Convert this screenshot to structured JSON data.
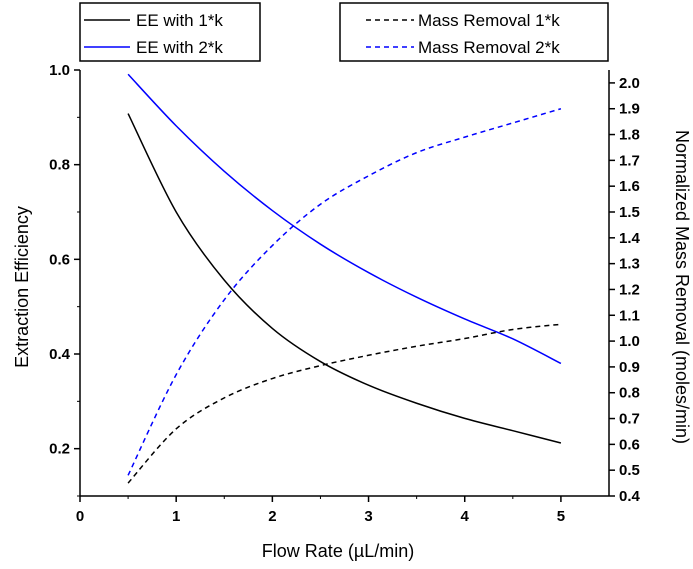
{
  "chart_data": {
    "type": "line",
    "xlabel": "Flow Rate (µL/min)",
    "ylabel_left": "Extraction Efficiency",
    "ylabel_right": "Normalized Mass Removal (moles/min)",
    "xlim": [
      0,
      5.5
    ],
    "ylim_left": [
      0.1,
      1.0
    ],
    "ylim_right": [
      0.4,
      2.05
    ],
    "x_ticks": [
      "0",
      "1",
      "2",
      "3",
      "4",
      "5"
    ],
    "y_left_ticks": [
      "0.2",
      "0.4",
      "0.6",
      "0.8",
      "1.0"
    ],
    "y_right_ticks": [
      "0.4",
      "0.5",
      "0.6",
      "0.7",
      "0.8",
      "0.9",
      "1.0",
      "1.1",
      "1.2",
      "1.3",
      "1.4",
      "1.5",
      "1.6",
      "1.7",
      "1.8",
      "1.9",
      "2.0"
    ],
    "series": [
      {
        "name": "EE with 1*k",
        "axis": "left",
        "style": "solid",
        "color": "#000000",
        "x": [
          0.5,
          1.0,
          1.5,
          2.0,
          2.5,
          3.0,
          3.5,
          4.0,
          4.5,
          5.0
        ],
        "y": [
          0.908,
          0.7,
          0.556,
          0.454,
          0.384,
          0.334,
          0.296,
          0.264,
          0.238,
          0.212
        ]
      },
      {
        "name": "EE with 2*k",
        "axis": "left",
        "style": "solid",
        "color": "#0000ff",
        "x": [
          0.5,
          1.0,
          1.5,
          2.0,
          2.5,
          3.0,
          3.5,
          4.0,
          4.5,
          5.0
        ],
        "y": [
          0.991,
          0.882,
          0.786,
          0.703,
          0.632,
          0.572,
          0.52,
          0.474,
          0.432,
          0.38
        ]
      },
      {
        "name": "Mass Removal 1*k",
        "axis": "right",
        "style": "dashed",
        "color": "#000000",
        "x": [
          0.5,
          1.0,
          1.5,
          2.0,
          2.5,
          3.0,
          3.5,
          4.0,
          4.5,
          5.0
        ],
        "y": [
          0.45,
          0.66,
          0.78,
          0.855,
          0.905,
          0.945,
          0.98,
          1.01,
          1.045,
          1.065
        ]
      },
      {
        "name": "Mass Removal 2*k",
        "axis": "right",
        "style": "dashed",
        "color": "#0000ff",
        "x": [
          0.5,
          1.0,
          1.5,
          2.0,
          2.5,
          3.0,
          3.5,
          4.0,
          4.5,
          5.0
        ],
        "y": [
          0.48,
          0.87,
          1.16,
          1.37,
          1.53,
          1.64,
          1.73,
          1.79,
          1.845,
          1.9
        ]
      }
    ],
    "legend": [
      {
        "label": "EE with 1*k",
        "style": "solid",
        "color": "#000000",
        "placement": "top-left"
      },
      {
        "label": "EE with 2*k",
        "style": "solid",
        "color": "#0000ff",
        "placement": "top-left"
      },
      {
        "label": "Mass Removal 1*k",
        "style": "dashed",
        "color": "#000000",
        "placement": "top-right"
      },
      {
        "label": "Mass Removal 2*k",
        "style": "dashed",
        "color": "#0000ff",
        "placement": "top-right"
      }
    ]
  }
}
